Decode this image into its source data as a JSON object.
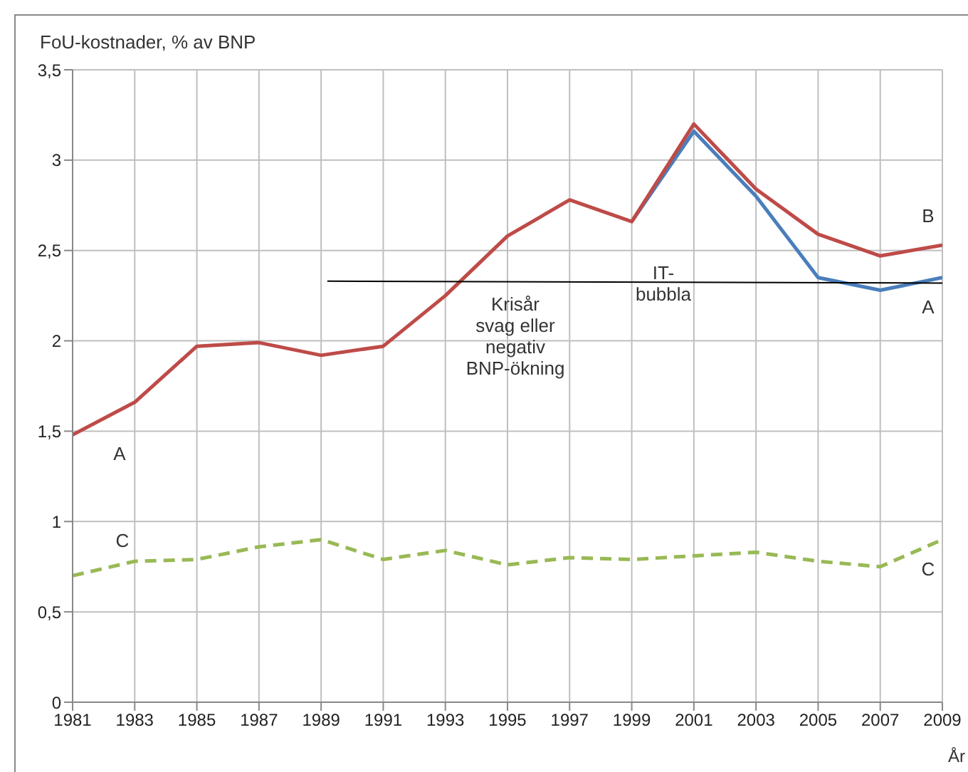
{
  "chart_data": {
    "type": "line",
    "ylabel": "FoU-kostnader, % av BNP",
    "xlabel": "År",
    "x": [
      1981,
      1983,
      1985,
      1987,
      1989,
      1991,
      1993,
      1995,
      1997,
      1999,
      2001,
      2003,
      2005,
      2007,
      2009
    ],
    "series": [
      {
        "name": "A",
        "color": "#4a7ebb",
        "values": [
          null,
          null,
          null,
          null,
          null,
          null,
          null,
          null,
          null,
          2.66,
          3.16,
          2.8,
          2.35,
          2.28,
          2.35
        ]
      },
      {
        "name": "B",
        "color": "#be4b48",
        "values": [
          1.48,
          1.66,
          1.97,
          1.99,
          1.92,
          1.97,
          2.25,
          2.58,
          2.78,
          2.66,
          3.2,
          2.84,
          2.59,
          2.47,
          2.53
        ]
      },
      {
        "name": "C",
        "color": "#98b954",
        "line_style": "dashed",
        "values": [
          0.7,
          0.78,
          0.79,
          0.86,
          0.9,
          0.79,
          0.84,
          0.76,
          0.8,
          0.79,
          0.81,
          0.83,
          0.78,
          0.75,
          0.9
        ]
      },
      {
        "color": "#000000",
        "x": [
          1989.2,
          2009
        ],
        "values": [
          2.33,
          2.32
        ]
      }
    ],
    "xlim": [
      1981,
      2009
    ],
    "xticks": [
      1981,
      1983,
      1985,
      1987,
      1989,
      1991,
      1993,
      1995,
      1997,
      1999,
      2001,
      2003,
      2005,
      2007,
      2009
    ],
    "ylim": [
      0,
      3.5
    ],
    "yticks": [
      0,
      {
        "value": 0.5,
        "label": "0,5"
      },
      1,
      {
        "value": 1.5,
        "label": "1,5"
      },
      2,
      {
        "value": 2.5,
        "label": "2,5"
      },
      3,
      {
        "value": 3.5,
        "label": "3,5"
      }
    ],
    "grid": true,
    "legend": false,
    "marker": "none",
    "line_style": "solid",
    "annotations": [
      "A",
      "C",
      "Krisår\nsvag eller\nnegativ\nBNP-ökning",
      "IT-\nbubbla"
    ]
  }
}
